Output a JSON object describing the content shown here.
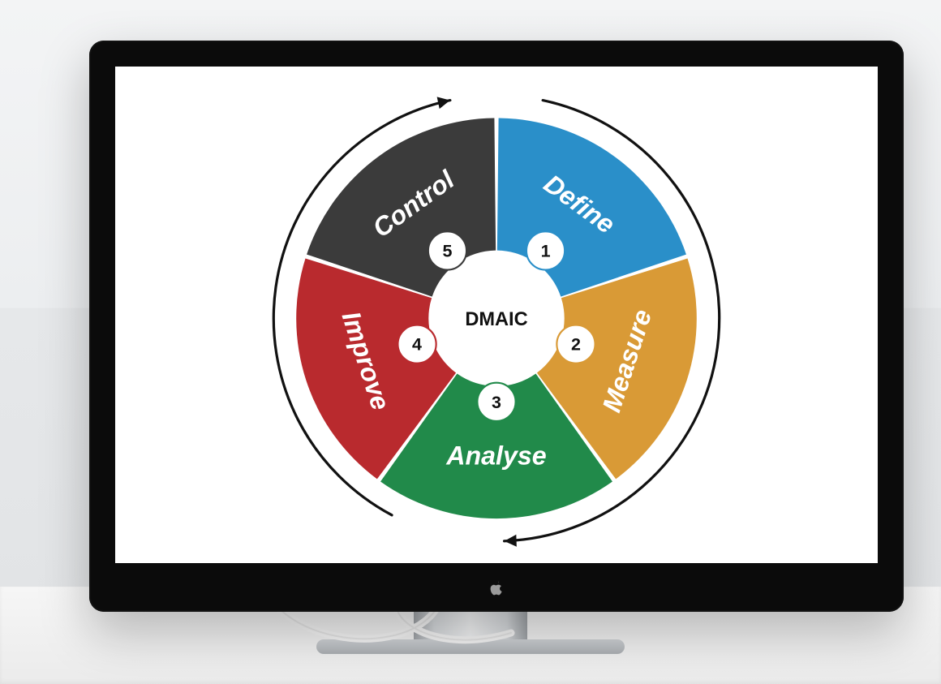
{
  "diagram": {
    "type": "cycle-wheel",
    "center_label": "DMAIC",
    "center_fontsize": 22,
    "center_color": "#111111",
    "background_color": "#ffffff",
    "outer_radius": 230,
    "inner_radius": 78,
    "gap_deg": 1.2,
    "label_fontsize": 30,
    "number_fontsize": 20,
    "number_bg": "#ffffff",
    "number_radius_pos": 96,
    "label_radius_pos": 160,
    "arrow_color": "#111111",
    "arrow_stroke": 3,
    "segments": [
      {
        "num": "1",
        "label": "Define",
        "color": "#2a8fc9",
        "border": "#2a8fc9"
      },
      {
        "num": "2",
        "label": "Measure",
        "color": "#d99a36",
        "border": "#d99a36"
      },
      {
        "num": "3",
        "label": "Analyse",
        "color": "#218a4a",
        "border": "#218a4a"
      },
      {
        "num": "4",
        "label": "Improve",
        "color": "#b92a2e",
        "border": "#b92a2e"
      },
      {
        "num": "5",
        "label": "Control",
        "color": "#3b3b3b",
        "border": "#3b3b3b"
      }
    ]
  },
  "mockup": {
    "monitor_bezel_color": "#0b0b0b",
    "screen_color": "#ffffff",
    "stand_color": "#d7dadd",
    "background_color": "#eef0f2"
  }
}
